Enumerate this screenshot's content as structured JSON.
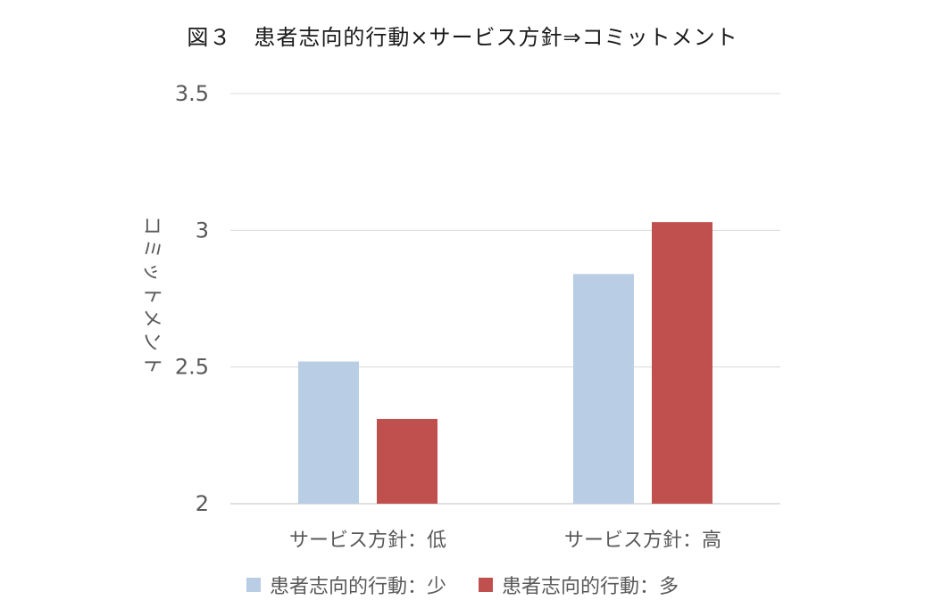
{
  "chart_data": {
    "type": "bar",
    "title": "図３　患者志向的行動×サービス方針⇒コミットメント",
    "xlabel": "",
    "ylabel": "コミットメント",
    "ylim": [
      2,
      3.5
    ],
    "yticks": [
      "2",
      "2.5",
      "3",
      "3.5"
    ],
    "grid": true,
    "legend_position": "bottom",
    "categories": [
      "サービス方針：低",
      "サービス方針：高"
    ],
    "series": [
      {
        "name": "患者志向的行動：少",
        "color": "#b9cde4",
        "values": [
          2.52,
          2.84
        ]
      },
      {
        "name": "患者志向的行動：多",
        "color": "#c0504d",
        "values": [
          2.31,
          3.03
        ]
      }
    ]
  }
}
